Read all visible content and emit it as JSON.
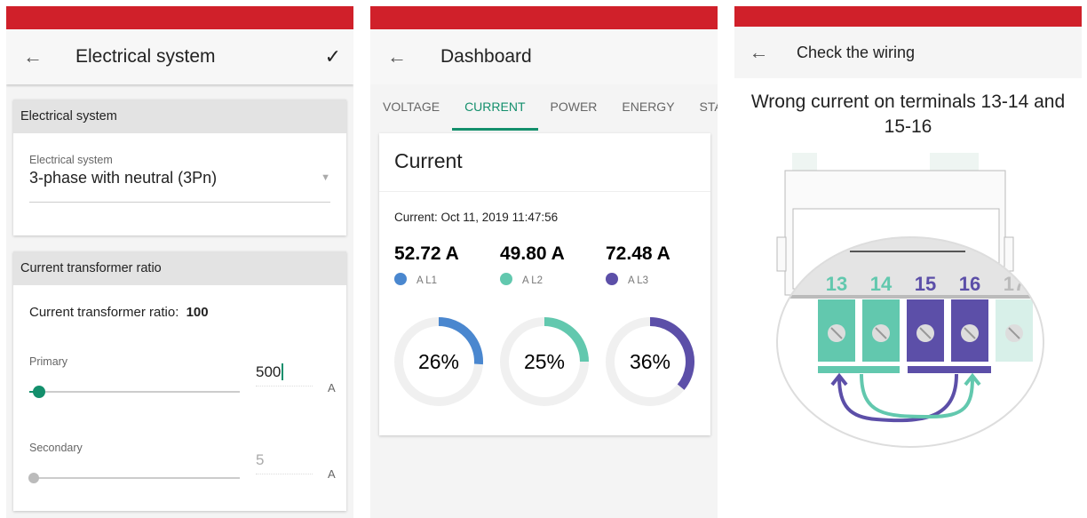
{
  "screen1": {
    "title": "Electrical system",
    "card1": {
      "header": "Electrical system",
      "field_label": "Electrical system",
      "field_value": "3-phase with neutral (3Pn)"
    },
    "card2": {
      "header": "Current transformer ratio",
      "ratio_label": "Current transformer ratio:",
      "ratio_value": "100",
      "primary_label": "Primary",
      "primary_value": "500",
      "primary_unit": "A",
      "primary_slider": 0.02,
      "secondary_label": "Secondary",
      "secondary_value": "5",
      "secondary_unit": "A"
    }
  },
  "screen2": {
    "title": "Dashboard",
    "tabs": [
      "VOLTAGE",
      "CURRENT",
      "POWER",
      "ENERGY",
      "STAT"
    ],
    "active_tab": "CURRENT",
    "card_title": "Current",
    "timestamp": "Current: Oct 11, 2019 11:47:56",
    "phases": [
      {
        "value": "52.72 A",
        "label": "A L1",
        "percent": 26,
        "pct_label": "26%",
        "color": "#4a87cf"
      },
      {
        "value": "49.80 A",
        "label": "A L2",
        "percent": 25,
        "pct_label": "25%",
        "color": "#62c8ae"
      },
      {
        "value": "72.48 A",
        "label": "A L3",
        "percent": 36,
        "pct_label": "36%",
        "color": "#5c4fa8"
      }
    ]
  },
  "screen3": {
    "title": "Check the wiring",
    "message": "Wrong current on terminals 13-14 and 15-16",
    "terminals": [
      "13",
      "14",
      "15",
      "16",
      "17"
    ],
    "colors": {
      "green": "#62c8ae",
      "purple": "#5c4fa8"
    }
  },
  "accent": "#d0202a"
}
